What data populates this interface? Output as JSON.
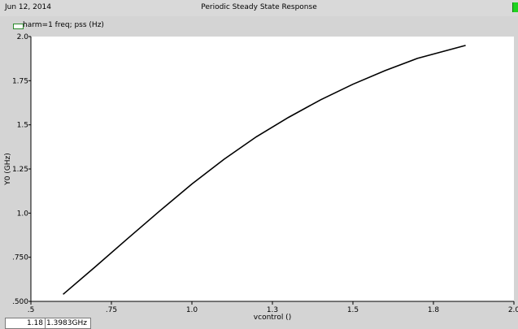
{
  "header": {
    "date": "Jun 12, 2014",
    "title": "Periodic Steady State Response"
  },
  "legend": {
    "label": "harm=1 freq; pss (Hz)",
    "swatch_color": "#2a8a2a"
  },
  "readout": {
    "x_value": "1.18",
    "y_value": "1.3983GHz"
  },
  "chart_data": {
    "type": "line",
    "title": "Periodic Steady State Response",
    "xlabel": "vcontrol ()",
    "ylabel": "Y0 (GHz)",
    "xlim": [
      0.5,
      2.0
    ],
    "ylim": [
      0.5,
      2.0
    ],
    "xticks": [
      0.5,
      0.75,
      1.0,
      1.25,
      1.5,
      1.75,
      2.0
    ],
    "xtick_labels": [
      ".5",
      ".75",
      "1.0",
      "1.3",
      "1.5",
      "1.8",
      "2.0"
    ],
    "yticks": [
      0.5,
      0.75,
      1.0,
      1.25,
      1.5,
      1.75,
      2.0
    ],
    "ytick_labels": [
      ".500",
      ".750",
      "1.0",
      "1.25",
      "1.5",
      "1.75",
      "2.0"
    ],
    "grid": false,
    "series": [
      {
        "name": "harm=1 freq; pss (Hz)",
        "color": "#000000",
        "x": [
          0.6,
          0.7,
          0.8,
          0.9,
          1.0,
          1.1,
          1.2,
          1.3,
          1.4,
          1.5,
          1.6,
          1.7,
          1.85
        ],
        "y": [
          0.54,
          0.696,
          0.855,
          1.012,
          1.165,
          1.305,
          1.432,
          1.542,
          1.642,
          1.73,
          1.807,
          1.876,
          1.95
        ]
      }
    ]
  }
}
